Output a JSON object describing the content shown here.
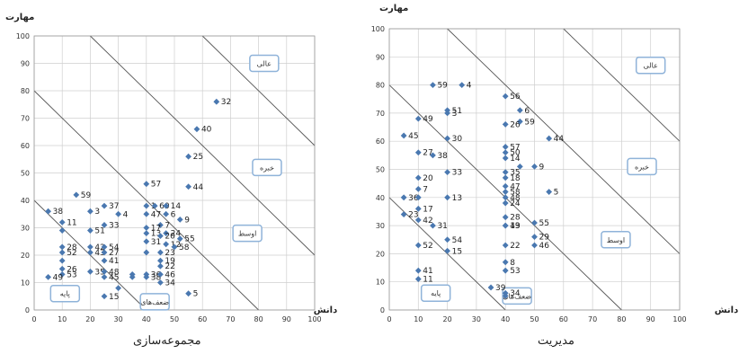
{
  "chart_data": [
    {
      "type": "scatter",
      "caption": "مجموعه‌سازی",
      "xlabel": "دانش",
      "ylabel": "مهارت",
      "xlim": [
        0,
        100
      ],
      "ylim": [
        0,
        100
      ],
      "ticks": [
        0,
        10,
        20,
        30,
        40,
        50,
        60,
        70,
        80,
        90,
        100
      ],
      "zones": [
        {
          "label": "عالی",
          "x": 82,
          "y": 90
        },
        {
          "label": "خبره",
          "x": 83,
          "y": 52
        },
        {
          "label": "اوسط",
          "x": 76,
          "y": 28
        },
        {
          "label": "پایه",
          "x": 11,
          "y": 6
        },
        {
          "label": "ضعف‌های",
          "x": 43,
          "y": 3
        }
      ],
      "points": [
        {
          "x": 65,
          "y": 76,
          "label": "32"
        },
        {
          "x": 58,
          "y": 66,
          "label": "40"
        },
        {
          "x": 55,
          "y": 56,
          "label": "25"
        },
        {
          "x": 55,
          "y": 45,
          "label": "44"
        },
        {
          "x": 40,
          "y": 46,
          "label": "57"
        },
        {
          "x": 15,
          "y": 42,
          "label": "59"
        },
        {
          "x": 25,
          "y": 38,
          "label": "37"
        },
        {
          "x": 40,
          "y": 38,
          "label": "1"
        },
        {
          "x": 43,
          "y": 38,
          "label": "60"
        },
        {
          "x": 47,
          "y": 38,
          "label": "14"
        },
        {
          "x": 20,
          "y": 36,
          "label": "3"
        },
        {
          "x": 30,
          "y": 35,
          "label": "4"
        },
        {
          "x": 40,
          "y": 35,
          "label": "47"
        },
        {
          "x": 47,
          "y": 35,
          "label": "6"
        },
        {
          "x": 52,
          "y": 33,
          "label": "9"
        },
        {
          "x": 10,
          "y": 32,
          "label": "11"
        },
        {
          "x": 25,
          "y": 31,
          "label": "33"
        },
        {
          "x": 45,
          "y": 31,
          "label": "7"
        },
        {
          "x": 40,
          "y": 30,
          "label": "17"
        },
        {
          "x": 10,
          "y": 29,
          "label": ""
        },
        {
          "x": 20,
          "y": 29,
          "label": "51"
        },
        {
          "x": 40,
          "y": 28,
          "label": "13"
        },
        {
          "x": 47,
          "y": 28,
          "label": "24"
        },
        {
          "x": 45,
          "y": 27,
          "label": "20"
        },
        {
          "x": 52,
          "y": 26,
          "label": "55"
        },
        {
          "x": 40,
          "y": 25,
          "label": "31"
        },
        {
          "x": 47,
          "y": 24,
          "label": "12"
        },
        {
          "x": 20,
          "y": 23,
          "label": "42"
        },
        {
          "x": 10,
          "y": 23,
          "label": "28"
        },
        {
          "x": 25,
          "y": 23,
          "label": "54"
        },
        {
          "x": 50,
          "y": 23,
          "label": "58"
        },
        {
          "x": 10,
          "y": 21,
          "label": "52"
        },
        {
          "x": 20,
          "y": 21,
          "label": "43"
        },
        {
          "x": 25,
          "y": 21,
          "label": "27"
        },
        {
          "x": 45,
          "y": 21,
          "label": "23"
        },
        {
          "x": 40,
          "y": 21,
          "label": ""
        },
        {
          "x": 25,
          "y": 18,
          "label": "41"
        },
        {
          "x": 10,
          "y": 18,
          "label": ""
        },
        {
          "x": 45,
          "y": 18,
          "label": "19"
        },
        {
          "x": 45,
          "y": 16,
          "label": "22"
        },
        {
          "x": 10,
          "y": 15,
          "label": "26"
        },
        {
          "x": 10,
          "y": 13,
          "label": "53"
        },
        {
          "x": 20,
          "y": 14,
          "label": "35"
        },
        {
          "x": 25,
          "y": 14,
          "label": "48"
        },
        {
          "x": 35,
          "y": 13,
          "label": ""
        },
        {
          "x": 40,
          "y": 13,
          "label": "36"
        },
        {
          "x": 40,
          "y": 12,
          "label": "38"
        },
        {
          "x": 45,
          "y": 13,
          "label": "46"
        },
        {
          "x": 25,
          "y": 12,
          "label": "45"
        },
        {
          "x": 5,
          "y": 12,
          "label": "49"
        },
        {
          "x": 35,
          "y": 12,
          "label": ""
        },
        {
          "x": 45,
          "y": 10,
          "label": "34"
        },
        {
          "x": 30,
          "y": 8,
          "label": ""
        },
        {
          "x": 25,
          "y": 5,
          "label": "15"
        },
        {
          "x": 55,
          "y": 6,
          "label": "5"
        },
        {
          "x": 5,
          "y": 36,
          "label": "38"
        }
      ]
    },
    {
      "type": "scatter",
      "caption": "مدیریت",
      "xlabel": "دانش",
      "ylabel": "مهارت",
      "xlim": [
        0,
        100
      ],
      "ylim": [
        0,
        100
      ],
      "ticks": [
        0,
        10,
        20,
        30,
        40,
        50,
        60,
        70,
        80,
        90,
        100
      ],
      "zones": [
        {
          "label": "عالی",
          "x": 90,
          "y": 87
        },
        {
          "label": "خبره",
          "x": 87,
          "y": 51
        },
        {
          "label": "اوسط",
          "x": 78,
          "y": 25
        },
        {
          "label": "پایه",
          "x": 16,
          "y": 6
        },
        {
          "label": "ضعف‌های",
          "x": 44,
          "y": 5
        }
      ],
      "points": [
        {
          "x": 15,
          "y": 80,
          "label": "59"
        },
        {
          "x": 25,
          "y": 80,
          "label": "4"
        },
        {
          "x": 40,
          "y": 76,
          "label": "56"
        },
        {
          "x": 20,
          "y": 71,
          "label": "51"
        },
        {
          "x": 20,
          "y": 70,
          "label": "3"
        },
        {
          "x": 45,
          "y": 71,
          "label": "6"
        },
        {
          "x": 10,
          "y": 68,
          "label": "49"
        },
        {
          "x": 45,
          "y": 67,
          "label": "59"
        },
        {
          "x": 40,
          "y": 66,
          "label": "26"
        },
        {
          "x": 5,
          "y": 62,
          "label": "45"
        },
        {
          "x": 20,
          "y": 61,
          "label": "30"
        },
        {
          "x": 55,
          "y": 61,
          "label": "44"
        },
        {
          "x": 40,
          "y": 58,
          "label": "57"
        },
        {
          "x": 40,
          "y": 56,
          "label": "50"
        },
        {
          "x": 10,
          "y": 56,
          "label": "27"
        },
        {
          "x": 15,
          "y": 55,
          "label": "38"
        },
        {
          "x": 40,
          "y": 54,
          "label": "14"
        },
        {
          "x": 50,
          "y": 51,
          "label": "9"
        },
        {
          "x": 45,
          "y": 51,
          "label": ""
        },
        {
          "x": 20,
          "y": 49,
          "label": "33"
        },
        {
          "x": 40,
          "y": 49,
          "label": "35"
        },
        {
          "x": 40,
          "y": 47,
          "label": "18"
        },
        {
          "x": 10,
          "y": 47,
          "label": "20"
        },
        {
          "x": 40,
          "y": 44,
          "label": "47"
        },
        {
          "x": 10,
          "y": 43,
          "label": "7"
        },
        {
          "x": 40,
          "y": 42,
          "label": "58"
        },
        {
          "x": 55,
          "y": 42,
          "label": "5"
        },
        {
          "x": 40,
          "y": 40,
          "label": "48"
        },
        {
          "x": 5,
          "y": 40,
          "label": "36"
        },
        {
          "x": 20,
          "y": 40,
          "label": "13"
        },
        {
          "x": 40,
          "y": 38,
          "label": "24"
        },
        {
          "x": 10,
          "y": 36,
          "label": "17"
        },
        {
          "x": 40,
          "y": 33,
          "label": "28"
        },
        {
          "x": 5,
          "y": 34,
          "label": "23"
        },
        {
          "x": 10,
          "y": 32,
          "label": "42"
        },
        {
          "x": 15,
          "y": 30,
          "label": "31"
        },
        {
          "x": 40,
          "y": 30,
          "label": "19"
        },
        {
          "x": 50,
          "y": 31,
          "label": "55"
        },
        {
          "x": 50,
          "y": 26,
          "label": "29"
        },
        {
          "x": 50,
          "y": 23,
          "label": "46"
        },
        {
          "x": 20,
          "y": 25,
          "label": "54"
        },
        {
          "x": 40,
          "y": 23,
          "label": "22"
        },
        {
          "x": 10,
          "y": 23,
          "label": "52"
        },
        {
          "x": 20,
          "y": 21,
          "label": "15"
        },
        {
          "x": 40,
          "y": 17,
          "label": "8"
        },
        {
          "x": 40,
          "y": 14,
          "label": "53"
        },
        {
          "x": 10,
          "y": 14,
          "label": "41"
        },
        {
          "x": 10,
          "y": 11,
          "label": "11"
        },
        {
          "x": 40,
          "y": 6,
          "label": "34"
        },
        {
          "x": 40,
          "y": 5,
          "label": ""
        },
        {
          "x": 10,
          "y": 40,
          "label": ""
        },
        {
          "x": 40,
          "y": 30,
          "label": "43"
        },
        {
          "x": 35,
          "y": 8,
          "label": "39"
        }
      ]
    }
  ]
}
